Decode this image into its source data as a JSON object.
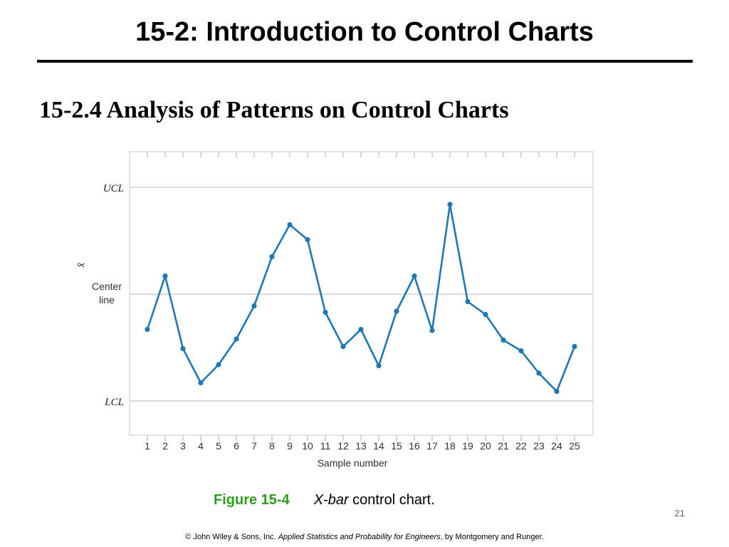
{
  "slide": {
    "title": "15-2: Introduction to Control Charts",
    "subtitle": "15-2.4 Analysis of Patterns on Control Charts",
    "caption_label": "Figure 15-4",
    "caption_italic": "X-bar",
    "caption_rest": " control chart.",
    "page_number": "21",
    "footer_prefix": "© John Wiley & Sons, Inc.  ",
    "footer_book": "Applied Statistics and Probability for Engineers",
    "footer_suffix": ", by Montgomery and Runger."
  },
  "chart_data": {
    "type": "line",
    "xlabel": "Sample number",
    "ylabel": "x̄",
    "x": [
      1,
      2,
      3,
      4,
      5,
      6,
      7,
      8,
      9,
      10,
      11,
      12,
      13,
      14,
      15,
      16,
      17,
      18,
      19,
      20,
      21,
      22,
      23,
      24,
      25
    ],
    "y": [
      -0.33,
      0.17,
      -0.51,
      -0.83,
      -0.66,
      -0.42,
      -0.11,
      0.35,
      0.65,
      0.51,
      -0.17,
      -0.49,
      -0.33,
      -0.67,
      -0.16,
      0.17,
      -0.34,
      0.84,
      -0.07,
      -0.19,
      -0.43,
      -0.53,
      -0.74,
      -0.91,
      -0.49
    ],
    "ylim": [
      -1.33,
      1.33
    ],
    "control_lines": [
      {
        "label": "UCL",
        "value": 1
      },
      {
        "label": "Center\nline",
        "value": 0
      },
      {
        "label": "LCL",
        "value": -1
      }
    ],
    "line_color": "#1f77b4",
    "grid": true
  }
}
